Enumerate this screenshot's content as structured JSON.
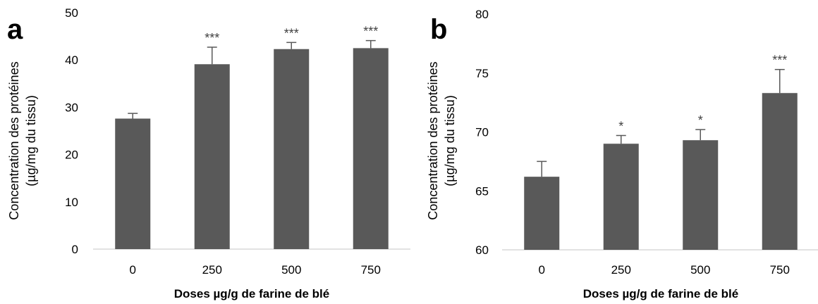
{
  "chart_data": [
    {
      "type": "bar",
      "panel": "a",
      "categories": [
        "0",
        "250",
        "500",
        "750"
      ],
      "values": [
        27.6,
        39.1,
        42.3,
        42.5
      ],
      "errors": [
        1.1,
        3.6,
        1.4,
        1.6
      ],
      "significance": [
        "",
        "***",
        "***",
        "***"
      ],
      "ylabel": [
        "Concentration des protéines",
        "(µg/mg du tissu)"
      ],
      "xlabel": "Doses µg/g de farine de blé",
      "ylim": [
        0,
        50
      ],
      "yticks": [
        0,
        10,
        20,
        30,
        40,
        50
      ],
      "bar_color": "#595959",
      "grid": false
    },
    {
      "type": "bar",
      "panel": "b",
      "categories": [
        "0",
        "250",
        "500",
        "750"
      ],
      "values": [
        66.2,
        69.0,
        69.3,
        73.3
      ],
      "errors": [
        1.3,
        0.7,
        0.9,
        2.0
      ],
      "significance": [
        "",
        "*",
        "*",
        "***"
      ],
      "ylabel": [
        "Concentration des protéines",
        "(µg/mg du tissu)"
      ],
      "xlabel": "Doses µg/g de farine de blé",
      "ylim": [
        60,
        80
      ],
      "yticks": [
        60,
        65,
        70,
        75,
        80
      ],
      "bar_color": "#595959",
      "grid": false
    }
  ]
}
